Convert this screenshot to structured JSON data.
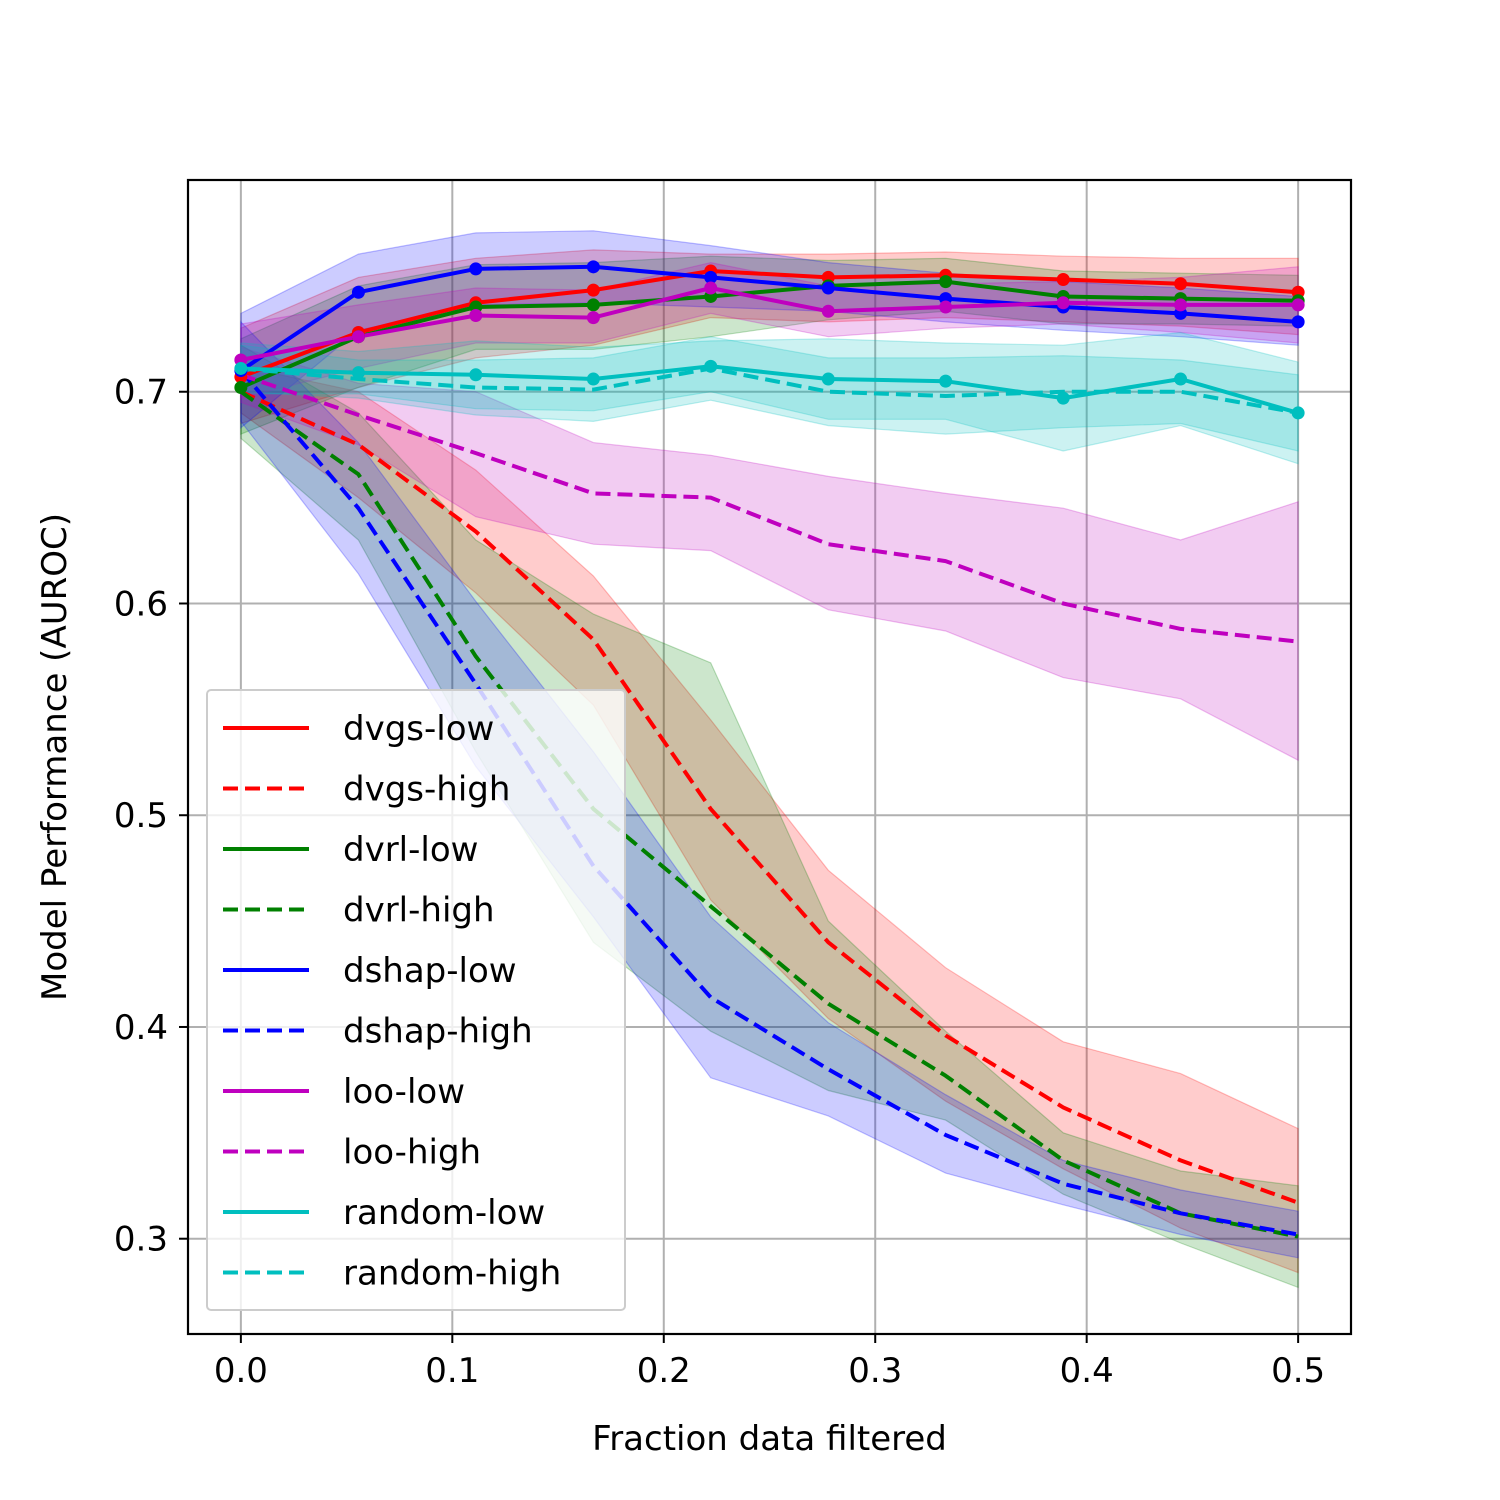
{
  "chart_data": {
    "type": "line",
    "title": "",
    "xlabel": "Fraction data filtered",
    "ylabel": "Model Performance (AUROC)",
    "xlim": [
      -0.025,
      0.525
    ],
    "ylim": [
      0.255,
      0.8
    ],
    "xticks": [
      0.0,
      0.1,
      0.2,
      0.3,
      0.4,
      0.5
    ],
    "xtick_labels": [
      "0.0",
      "0.1",
      "0.2",
      "0.3",
      "0.4",
      "0.5"
    ],
    "yticks": [
      0.3,
      0.4,
      0.5,
      0.6,
      0.7
    ],
    "ytick_labels": [
      "0.3",
      "0.4",
      "0.5",
      "0.6",
      "0.7"
    ],
    "grid": true,
    "legend_position": "lower-left",
    "x": [
      0.0,
      0.0556,
      0.1111,
      0.1667,
      0.2222,
      0.2778,
      0.3333,
      0.3889,
      0.4444,
      0.5
    ],
    "series": [
      {
        "name": "dvgs-low",
        "color": "#ff0000",
        "style": "solid",
        "markers": true,
        "values": [
          0.707,
          0.728,
          0.742,
          0.748,
          0.757,
          0.754,
          0.755,
          0.753,
          0.751,
          0.747
        ],
        "lower": [
          0.685,
          0.702,
          0.716,
          0.722,
          0.735,
          0.733,
          0.735,
          0.733,
          0.731,
          0.727
        ],
        "upper": [
          0.73,
          0.754,
          0.763,
          0.767,
          0.765,
          0.765,
          0.766,
          0.764,
          0.763,
          0.763
        ]
      },
      {
        "name": "dvgs-high",
        "color": "#ff0000",
        "style": "dashed",
        "markers": false,
        "values": [
          0.7,
          0.675,
          0.634,
          0.583,
          0.503,
          0.44,
          0.396,
          0.362,
          0.337,
          0.317
        ],
        "lower": [
          0.69,
          0.65,
          0.605,
          0.552,
          0.46,
          0.404,
          0.365,
          0.333,
          0.305,
          0.284
        ],
        "upper": [
          0.712,
          0.7,
          0.663,
          0.613,
          0.545,
          0.474,
          0.428,
          0.393,
          0.378,
          0.352
        ]
      },
      {
        "name": "dvrl-low",
        "color": "#008000",
        "style": "solid",
        "markers": true,
        "values": [
          0.702,
          0.726,
          0.74,
          0.741,
          0.745,
          0.75,
          0.752,
          0.745,
          0.744,
          0.743
        ],
        "lower": [
          0.68,
          0.702,
          0.72,
          0.72,
          0.726,
          0.734,
          0.738,
          0.732,
          0.732,
          0.731
        ],
        "upper": [
          0.725,
          0.75,
          0.76,
          0.761,
          0.764,
          0.762,
          0.763,
          0.757,
          0.756,
          0.755
        ]
      },
      {
        "name": "dvrl-high",
        "color": "#008000",
        "style": "dashed",
        "markers": false,
        "values": [
          0.7,
          0.661,
          0.575,
          0.503,
          0.457,
          0.411,
          0.377,
          0.337,
          0.312,
          0.301
        ],
        "lower": [
          0.678,
          0.63,
          0.53,
          0.44,
          0.398,
          0.37,
          0.356,
          0.321,
          0.298,
          0.277
        ],
        "upper": [
          0.722,
          0.69,
          0.63,
          0.595,
          0.572,
          0.45,
          0.398,
          0.35,
          0.332,
          0.325
        ]
      },
      {
        "name": "dshap-low",
        "color": "#0000ff",
        "style": "solid",
        "markers": true,
        "values": [
          0.71,
          0.747,
          0.758,
          0.759,
          0.754,
          0.749,
          0.744,
          0.74,
          0.737,
          0.733
        ],
        "lower": [
          0.683,
          0.729,
          0.741,
          0.742,
          0.74,
          0.738,
          0.733,
          0.729,
          0.726,
          0.722
        ],
        "upper": [
          0.737,
          0.765,
          0.775,
          0.776,
          0.769,
          0.761,
          0.756,
          0.752,
          0.749,
          0.745
        ]
      },
      {
        "name": "dshap-high",
        "color": "#0000ff",
        "style": "dashed",
        "markers": false,
        "values": [
          0.71,
          0.645,
          0.562,
          0.476,
          0.414,
          0.38,
          0.349,
          0.326,
          0.312,
          0.302
        ],
        "lower": [
          0.686,
          0.614,
          0.523,
          0.452,
          0.376,
          0.358,
          0.331,
          0.316,
          0.302,
          0.291
        ],
        "upper": [
          0.733,
          0.676,
          0.601,
          0.53,
          0.452,
          0.402,
          0.368,
          0.337,
          0.323,
          0.313
        ]
      },
      {
        "name": "loo-low",
        "color": "#bf00bf",
        "style": "solid",
        "markers": true,
        "values": [
          0.715,
          0.726,
          0.736,
          0.735,
          0.749,
          0.738,
          0.74,
          0.742,
          0.741,
          0.741
        ],
        "lower": [
          0.697,
          0.711,
          0.723,
          0.723,
          0.737,
          0.726,
          0.73,
          0.732,
          0.728,
          0.723
        ],
        "upper": [
          0.732,
          0.741,
          0.749,
          0.748,
          0.761,
          0.75,
          0.751,
          0.752,
          0.754,
          0.759
        ]
      },
      {
        "name": "loo-high",
        "color": "#bf00bf",
        "style": "dashed",
        "markers": false,
        "values": [
          0.708,
          0.689,
          0.671,
          0.652,
          0.65,
          0.628,
          0.62,
          0.6,
          0.588,
          0.582
        ],
        "lower": [
          0.695,
          0.675,
          0.641,
          0.628,
          0.625,
          0.597,
          0.587,
          0.565,
          0.555,
          0.526
        ],
        "upper": [
          0.721,
          0.704,
          0.7,
          0.676,
          0.67,
          0.66,
          0.652,
          0.645,
          0.63,
          0.648
        ]
      },
      {
        "name": "random-low",
        "color": "#00bfbf",
        "style": "solid",
        "markers": true,
        "values": [
          0.711,
          0.709,
          0.708,
          0.706,
          0.712,
          0.706,
          0.705,
          0.697,
          0.706,
          0.69
        ],
        "lower": [
          0.699,
          0.699,
          0.692,
          0.691,
          0.7,
          0.687,
          0.687,
          0.672,
          0.684,
          0.666
        ],
        "upper": [
          0.723,
          0.719,
          0.724,
          0.721,
          0.724,
          0.725,
          0.723,
          0.722,
          0.728,
          0.714
        ]
      },
      {
        "name": "random-high",
        "color": "#00bfbf",
        "style": "dashed",
        "markers": false,
        "values": [
          0.711,
          0.706,
          0.702,
          0.701,
          0.711,
          0.7,
          0.698,
          0.7,
          0.7,
          0.69
        ],
        "lower": [
          0.7,
          0.697,
          0.689,
          0.686,
          0.696,
          0.684,
          0.68,
          0.683,
          0.685,
          0.672
        ],
        "upper": [
          0.722,
          0.715,
          0.715,
          0.716,
          0.726,
          0.716,
          0.716,
          0.717,
          0.715,
          0.708
        ]
      }
    ]
  }
}
